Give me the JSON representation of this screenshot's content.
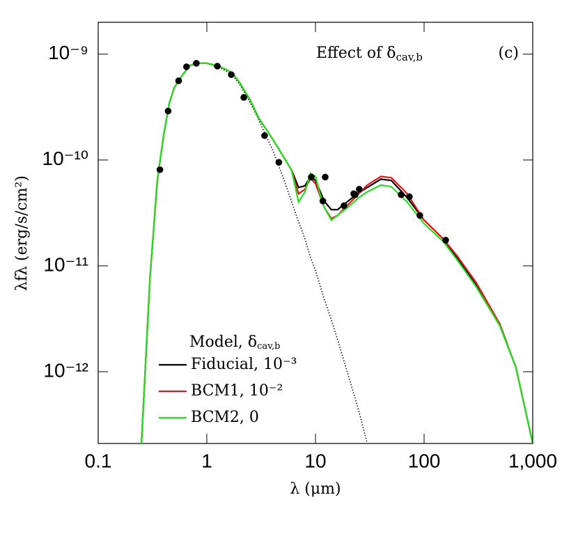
{
  "chart_data": {
    "type": "line",
    "annotation": {
      "text": "Effect of δ",
      "sub": "cav,b"
    },
    "panel_label": "(c)",
    "xlabel": "λ (μm)",
    "ylabel": "λfλ (erg/s/cm²)",
    "legend_title": {
      "text": "Model, δ",
      "sub": "cav,b"
    },
    "legend_position": "lower left",
    "xscale": "log",
    "yscale": "log",
    "xlim": [
      0.1,
      1000
    ],
    "ylim": [
      2.1e-13,
      2e-09
    ],
    "xticks": [
      0.1,
      1,
      10,
      100,
      {
        "value": 1000,
        "label": "1,000"
      }
    ],
    "yticks": [
      {
        "value": 1e-12,
        "label": "10⁻¹²"
      },
      {
        "value": 1e-11,
        "label": "10⁻¹¹"
      },
      {
        "value": 1e-10,
        "label": "10⁻¹⁰"
      },
      {
        "value": 1e-09,
        "label": "10⁻⁹"
      }
    ],
    "x": [
      0.25,
      0.3,
      0.35,
      0.4,
      0.45,
      0.5,
      0.6,
      0.7,
      0.8,
      1,
      1.3,
      1.7,
      2,
      2.5,
      3,
      4,
      5,
      6,
      7,
      8,
      9,
      10,
      11,
      12,
      14,
      16,
      20,
      25,
      30,
      40,
      50,
      70,
      100,
      150,
      200,
      300,
      500,
      700,
      1000
    ],
    "series": [
      {
        "color": "#000000",
        "style": "dotted",
        "values": [
          2.1e-13,
          7.7e-12,
          6.4e-11,
          1.7e-10,
          3.4e-10,
          4.8e-10,
          6.4e-10,
          7.8e-10,
          8.2e-10,
          8.2e-10,
          7.5e-10,
          6.4e-10,
          5.2e-10,
          3.5e-10,
          2.4e-10,
          1.27e-10,
          7e-11,
          4.1e-11,
          2.6e-11,
          1.8e-11,
          1.2e-11,
          9e-12,
          6.6e-12,
          4.9e-12,
          3.1e-12,
          2e-12,
          9.3e-13,
          4.3e-13,
          2.1e-13,
          null,
          null,
          null,
          null,
          null,
          null,
          null,
          null,
          null,
          null
        ]
      },
      {
        "name": "Fiducial, 10⁻³",
        "color": "#000000",
        "values": [
          2.1e-13,
          7.7e-12,
          6.4e-11,
          1.7e-10,
          3.4e-10,
          4.8e-10,
          6.4e-10,
          7.8e-10,
          8.2e-10,
          8.2e-10,
          7.7e-10,
          6.7e-10,
          5.4e-10,
          3.7e-10,
          2.5e-10,
          1.6e-10,
          1.1e-10,
          8.1e-11,
          5.5e-11,
          5.7e-11,
          7e-11,
          6.4e-11,
          5.1e-11,
          4.1e-11,
          3.4e-11,
          3.4e-11,
          4.1e-11,
          4.9e-11,
          5.5e-11,
          6.6e-11,
          6.4e-11,
          4.4e-11,
          2.7e-11,
          1.8e-11,
          1.2e-11,
          6.6e-12,
          2.7e-12,
          1.1e-12,
          2.1e-13
        ]
      },
      {
        "name": "BCM1, 10⁻²",
        "color": "#e8141c",
        "values": [
          2.1e-13,
          7.7e-12,
          6.4e-11,
          1.7e-10,
          3.4e-10,
          4.8e-10,
          6.4e-10,
          7.8e-10,
          8.2e-10,
          8.2e-10,
          7.7e-10,
          6.7e-10,
          5.4e-10,
          3.7e-10,
          2.5e-10,
          1.6e-10,
          1.1e-10,
          8.1e-11,
          4.8e-11,
          5.3e-11,
          6.7e-11,
          6e-11,
          4.6e-11,
          3.6e-11,
          2.8e-11,
          3e-11,
          3.8e-11,
          4.8e-11,
          5.8e-11,
          7e-11,
          6.8e-11,
          4.8e-11,
          2.7e-11,
          1.8e-11,
          1.25e-11,
          7e-12,
          2.8e-12,
          1.1e-12,
          2.1e-13
        ]
      },
      {
        "name": "BCM2, 0",
        "color": "#22e01e",
        "values": [
          2.1e-13,
          7.7e-12,
          6.4e-11,
          1.7e-10,
          3.4e-10,
          4.8e-10,
          6.4e-10,
          7.8e-10,
          8.2e-10,
          8.2e-10,
          7.7e-10,
          6.7e-10,
          5.4e-10,
          3.7e-10,
          2.5e-10,
          1.6e-10,
          1.1e-10,
          8.1e-11,
          4e-11,
          5e-11,
          7.5e-11,
          7e-11,
          4.8e-11,
          3.6e-11,
          2.7e-11,
          3e-11,
          3.6e-11,
          4.4e-11,
          5e-11,
          5.8e-11,
          5.6e-11,
          4e-11,
          2.5e-11,
          1.7e-11,
          1.15e-11,
          6.4e-12,
          2.7e-12,
          1.1e-12,
          2.1e-13
        ]
      }
    ],
    "observations": {
      "color": "#000000",
      "x": [
        0.37,
        0.44,
        0.55,
        0.65,
        0.8,
        1.25,
        1.68,
        2.19,
        3.4,
        4.6,
        9.15,
        12.3,
        11.7,
        18.3,
        22.5,
        23.2,
        25.3,
        61.5,
        73.2,
        91.3,
        158
      ],
      "values": [
        8.1e-11,
        2.9e-10,
        5.6e-10,
        7.6e-10,
        8.2e-10,
        7.7e-10,
        6.4e-10,
        3.9e-10,
        1.7e-10,
        9.5e-11,
        6.9e-11,
        6.9e-11,
        4.1e-11,
        3.7e-11,
        4.8e-11,
        4.7e-11,
        5.3e-11,
        4.7e-11,
        4.5e-11,
        3e-11,
        1.75e-11
      ]
    }
  }
}
